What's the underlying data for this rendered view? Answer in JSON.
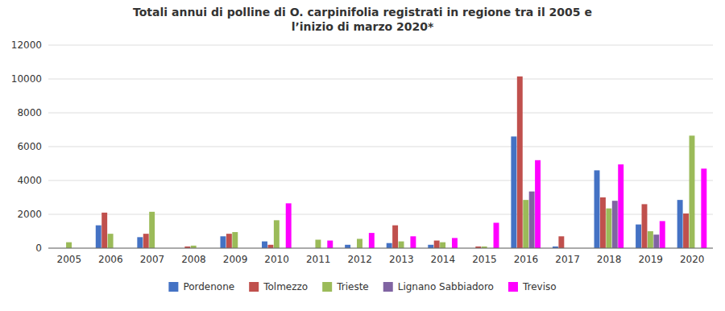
{
  "chart_data": {
    "type": "bar",
    "title": "Totali annui di polline di O. carpinifolia registrati in regione tra il 2005 e\nl’inizio di marzo 2020*",
    "categories": [
      "2005",
      "2006",
      "2007",
      "2008",
      "2009",
      "2010",
      "2011",
      "2012",
      "2013",
      "2014",
      "2015",
      "2016",
      "2017",
      "2018",
      "2019",
      "2020"
    ],
    "series": [
      {
        "name": "Pordenone",
        "color": "#4472C4",
        "values": [
          0,
          1350,
          650,
          0,
          700,
          400,
          0,
          200,
          300,
          200,
          0,
          6600,
          100,
          4600,
          1400,
          2850
        ]
      },
      {
        "name": "Tolmezzo",
        "color": "#C0504D",
        "values": [
          0,
          2100,
          850,
          100,
          850,
          200,
          0,
          0,
          1350,
          450,
          100,
          10150,
          700,
          3000,
          2600,
          2050
        ]
      },
      {
        "name": "Trieste",
        "color": "#9BBB59",
        "values": [
          350,
          850,
          2150,
          150,
          950,
          1650,
          500,
          550,
          400,
          350,
          100,
          2850,
          0,
          2350,
          1000,
          6650
        ]
      },
      {
        "name": "Lignano Sabbiadoro",
        "color": "#8064A2",
        "values": [
          0,
          0,
          0,
          0,
          0,
          0,
          0,
          0,
          0,
          0,
          0,
          3350,
          0,
          2800,
          800,
          0
        ]
      },
      {
        "name": "Treviso",
        "color": "#FF00FF",
        "values": [
          0,
          0,
          0,
          0,
          0,
          2650,
          450,
          900,
          700,
          600,
          1500,
          5200,
          0,
          4950,
          1600,
          4700
        ]
      }
    ],
    "ylim": [
      0,
      12000
    ],
    "yticks": [
      0,
      2000,
      4000,
      6000,
      8000,
      10000,
      12000
    ],
    "grid": true,
    "legend": "bottom"
  }
}
